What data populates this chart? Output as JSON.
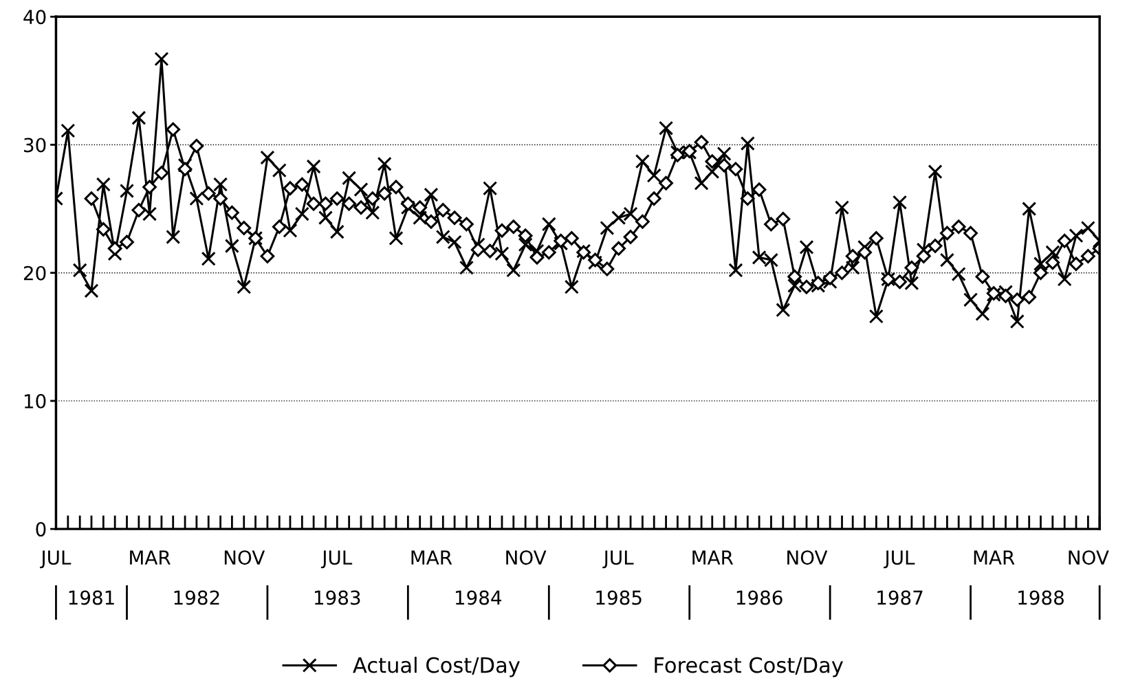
{
  "chart_data": {
    "type": "line",
    "x": [
      "1981-07",
      "1981-08",
      "1981-09",
      "1981-10",
      "1981-11",
      "1981-12",
      "1982-01",
      "1982-02",
      "1982-03",
      "1982-04",
      "1982-05",
      "1982-06",
      "1982-07",
      "1982-08",
      "1982-09",
      "1982-10",
      "1982-11",
      "1982-12",
      "1983-01",
      "1983-02",
      "1983-03",
      "1983-04",
      "1983-05",
      "1983-06",
      "1983-07",
      "1983-08",
      "1983-09",
      "1983-10",
      "1983-11",
      "1983-12",
      "1984-01",
      "1984-02",
      "1984-03",
      "1984-04",
      "1984-05",
      "1984-06",
      "1984-07",
      "1984-08",
      "1984-09",
      "1984-10",
      "1984-11",
      "1984-12",
      "1985-01",
      "1985-02",
      "1985-03",
      "1985-04",
      "1985-05",
      "1985-06",
      "1985-07",
      "1985-08",
      "1985-09",
      "1985-10",
      "1985-11",
      "1985-12",
      "1986-01",
      "1986-02",
      "1986-03",
      "1986-04",
      "1986-05",
      "1986-06",
      "1986-07",
      "1986-08",
      "1986-09",
      "1986-10",
      "1986-11",
      "1986-12",
      "1987-01",
      "1987-02",
      "1987-03",
      "1987-04",
      "1987-05",
      "1987-06",
      "1987-07",
      "1987-08",
      "1987-09",
      "1987-10",
      "1987-11",
      "1987-12",
      "1988-01",
      "1988-02",
      "1988-03",
      "1988-04",
      "1988-05",
      "1988-06",
      "1988-07",
      "1988-08",
      "1988-09",
      "1988-10",
      "1988-11",
      "1988-12"
    ],
    "series": [
      {
        "name": "Actual Cost/Day",
        "color": "#000000",
        "marker": "cross",
        "values": [
          25.8,
          31.1,
          20.2,
          18.6,
          26.9,
          21.5,
          26.4,
          32.1,
          24.6,
          36.7,
          22.8,
          28.4,
          25.8,
          21.1,
          26.9,
          22.1,
          18.9,
          22.7,
          29.0,
          28.0,
          23.3,
          24.6,
          28.3,
          24.3,
          23.2,
          27.4,
          26.5,
          24.7,
          28.5,
          22.7,
          25.1,
          24.3,
          26.1,
          22.8,
          22.4,
          20.4,
          22.2,
          26.6,
          21.5,
          20.2,
          22.2,
          21.7,
          23.8,
          22.3,
          18.9,
          21.7,
          20.8,
          23.5,
          24.3,
          24.6,
          28.7,
          27.6,
          31.3,
          29.4,
          29.4,
          27.0,
          27.9,
          29.3,
          20.2,
          30.1,
          21.2,
          21.0,
          17.1,
          19.0,
          22.0,
          19.0,
          19.3,
          25.1,
          20.4,
          22.0,
          16.6,
          19.5,
          25.5,
          19.2,
          21.8,
          27.9,
          21.0,
          19.9,
          17.9,
          16.8,
          18.3,
          18.5,
          16.2,
          25.0,
          20.7,
          21.6,
          19.5,
          22.9,
          23.5,
          22.5
        ]
      },
      {
        "name": "Forecast Cost/Day",
        "color": "#000000",
        "marker": "diamond",
        "values": [
          null,
          null,
          null,
          25.8,
          23.4,
          21.9,
          22.4,
          24.9,
          26.7,
          27.8,
          31.2,
          28.1,
          29.9,
          26.2,
          25.8,
          24.7,
          23.5,
          22.7,
          21.3,
          23.6,
          26.6,
          26.9,
          25.4,
          25.4,
          25.8,
          25.4,
          25.1,
          25.8,
          26.2,
          26.7,
          25.4,
          25.1,
          24.0,
          24.9,
          24.3,
          23.8,
          21.8,
          21.7,
          23.3,
          23.6,
          22.9,
          21.2,
          21.6,
          22.5,
          22.7,
          21.6,
          21.0,
          20.3,
          21.9,
          22.8,
          24.0,
          25.8,
          27.0,
          29.2,
          29.5,
          30.2,
          28.7,
          28.4,
          28.1,
          25.8,
          26.5,
          23.8,
          24.2,
          19.7,
          18.9,
          19.2,
          19.6,
          20.0,
          21.3,
          21.6,
          22.7,
          19.5,
          19.3,
          20.4,
          21.3,
          22.1,
          23.1,
          23.6,
          23.1,
          19.7,
          18.4,
          18.2,
          17.9,
          18.1,
          20.0,
          20.8,
          22.5,
          20.7,
          21.3,
          21.9
        ]
      }
    ],
    "xlim": [
      "1981-07",
      "1988-12"
    ],
    "xticks": [
      {
        "value": "1981-07",
        "label": "JUL"
      },
      {
        "value": "1982-03",
        "label": "MAR"
      },
      {
        "value": "1982-11",
        "label": "NOV"
      },
      {
        "value": "1983-07",
        "label": "JUL"
      },
      {
        "value": "1984-03",
        "label": "MAR"
      },
      {
        "value": "1984-11",
        "label": "NOV"
      },
      {
        "value": "1985-07",
        "label": "JUL"
      },
      {
        "value": "1986-03",
        "label": "MAR"
      },
      {
        "value": "1986-11",
        "label": "NOV"
      },
      {
        "value": "1987-07",
        "label": "JUL"
      },
      {
        "value": "1988-03",
        "label": "MAR"
      },
      {
        "value": "1988-11",
        "label": "NOV"
      }
    ],
    "x2lim": [
      "1981-07",
      "1988-12"
    ],
    "x2ticks": [
      {
        "value": "1981-10",
        "label": "1981"
      },
      {
        "value": "1982-07",
        "label": "1982"
      },
      {
        "value": "1983-07",
        "label": "1983"
      },
      {
        "value": "1984-07",
        "label": "1984"
      },
      {
        "value": "1985-07",
        "label": "1985"
      },
      {
        "value": "1986-07",
        "label": "1986"
      },
      {
        "value": "1987-07",
        "label": "1987"
      },
      {
        "value": "1988-07",
        "label": "1988"
      }
    ],
    "ylim": [
      0,
      40
    ],
    "yticks": [
      0,
      10,
      20,
      30,
      40
    ],
    "grid": "y",
    "legend": "bottom",
    "line_style": "solid"
  }
}
